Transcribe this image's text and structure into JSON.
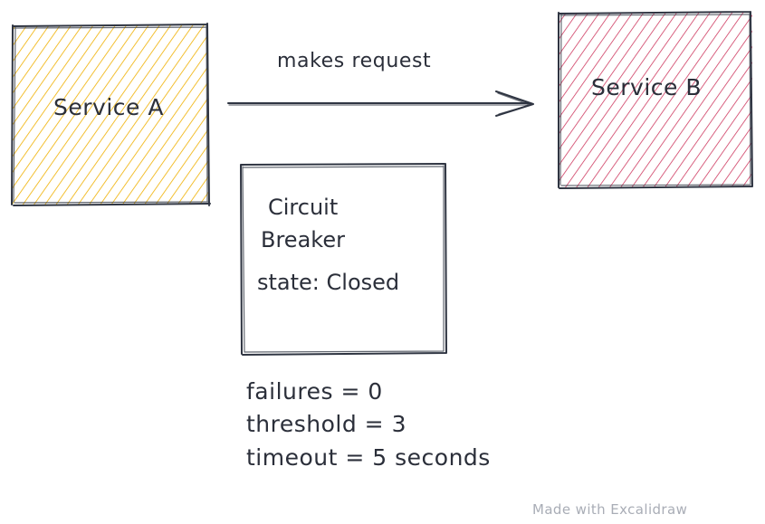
{
  "nodes": {
    "service_a": {
      "label": "Service A",
      "fill": "#f0b000",
      "stroke": "#2f3542"
    },
    "service_b": {
      "label": "Service B",
      "fill": "#cc2f58",
      "stroke": "#2f3542"
    },
    "circuit_breaker": {
      "title_line1": "Circuit",
      "title_line2": "Breaker",
      "state": "state: Closed",
      "stroke": "#2f3542"
    }
  },
  "edge": {
    "label": "makes request",
    "color": "#2f3542"
  },
  "notes": {
    "failures": "failures = 0",
    "threshold": "threshold = 3",
    "timeout": "timeout = 5 seconds"
  },
  "watermark": "Made with Excalidraw"
}
